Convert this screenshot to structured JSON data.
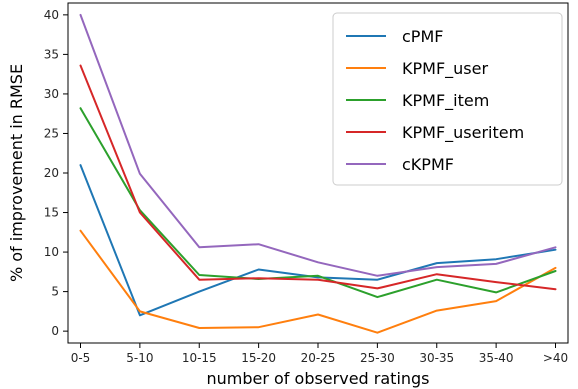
{
  "chart_data": {
    "type": "line",
    "title": "",
    "xlabel": "number of observed ratings",
    "ylabel": "% of improvement in RMSE",
    "categories": [
      "0-5",
      "5-10",
      "10-15",
      "15-20",
      "20-25",
      "25-30",
      "30-35",
      "35-40",
      ">40"
    ],
    "ylim": [
      -1.5,
      41.5
    ],
    "yticks": [
      0,
      5,
      10,
      15,
      20,
      25,
      30,
      35,
      40
    ],
    "grid": false,
    "legend_position": "upper right",
    "series": [
      {
        "name": "cPMF",
        "color": "#1f77b4",
        "values": [
          21.0,
          2.0,
          5.0,
          7.8,
          6.8,
          6.5,
          8.6,
          9.1,
          10.3
        ]
      },
      {
        "name": "KPMF_user",
        "color": "#ff7f0e",
        "values": [
          12.7,
          2.5,
          0.4,
          0.5,
          2.1,
          -0.2,
          2.6,
          3.8,
          8.0
        ]
      },
      {
        "name": "KPMF_item",
        "color": "#2ca02c",
        "values": [
          28.2,
          15.3,
          7.1,
          6.6,
          7.0,
          4.3,
          6.5,
          4.9,
          7.6
        ]
      },
      {
        "name": "KPMF_useritem",
        "color": "#d62728",
        "values": [
          33.6,
          15.0,
          6.5,
          6.7,
          6.5,
          5.4,
          7.2,
          6.2,
          5.3
        ]
      },
      {
        "name": "cKPMF",
        "color": "#9467bd",
        "values": [
          40.0,
          19.9,
          10.6,
          11.0,
          8.7,
          7.0,
          8.1,
          8.5,
          10.6
        ]
      }
    ]
  }
}
